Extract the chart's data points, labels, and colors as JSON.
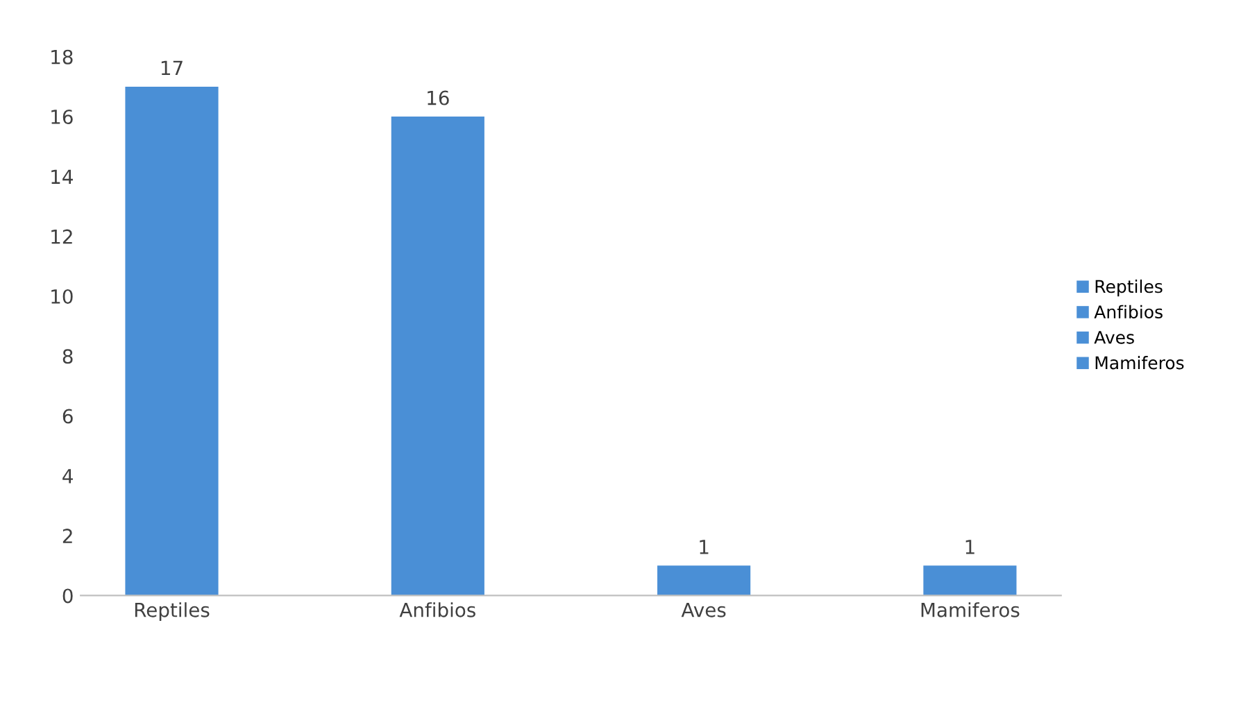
{
  "chart_data": {
    "type": "bar",
    "categories": [
      "Reptiles",
      "Anfibios",
      "Aves",
      "Mamiferos"
    ],
    "stacked": true,
    "series": [
      {
        "name": "Reptiles",
        "color": "#4a8fd6",
        "values": [
          17,
          null,
          null,
          null
        ]
      },
      {
        "name": "Anfibios",
        "color": "#4a8fd6",
        "values": [
          null,
          16,
          null,
          null
        ]
      },
      {
        "name": "Aves",
        "color": "#4a8fd6",
        "values": [
          null,
          null,
          1,
          null
        ]
      },
      {
        "name": "Mamiferos",
        "color": "#4a8fd6",
        "values": [
          null,
          null,
          null,
          1
        ]
      }
    ],
    "ylim": [
      0,
      18
    ],
    "yticks": [
      0,
      2,
      4,
      6,
      8,
      10,
      12,
      14,
      16,
      18
    ],
    "data_labels": true,
    "legend": "right",
    "grid": false
  }
}
